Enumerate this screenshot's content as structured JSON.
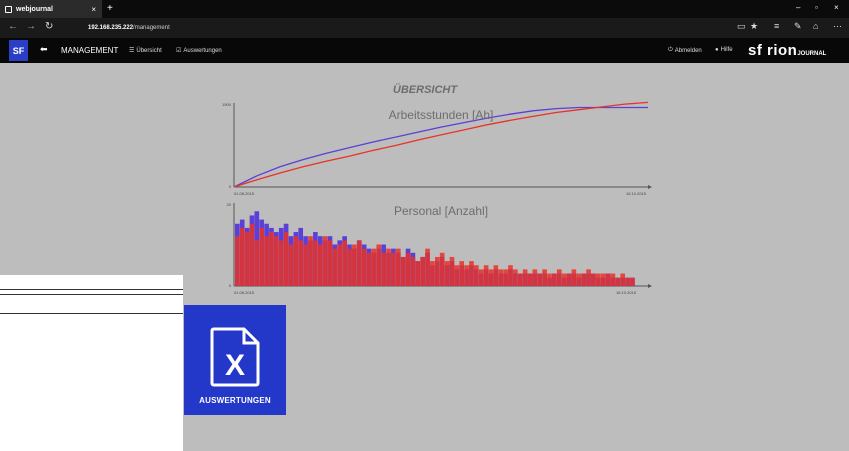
{
  "browser": {
    "tab_title": "webjournal",
    "tab_close": "×",
    "new_tab": "+",
    "win_min": "–",
    "win_max": "▫",
    "win_close": "×",
    "url_host": "192.168.235.222",
    "url_path": "/management"
  },
  "app": {
    "logo_text": "SF",
    "back_arrow": "⬅",
    "title": "MANAGEMENT",
    "nav_overview": "Übersicht",
    "nav_reports": "Auswertungen",
    "logout": "Abmelden",
    "help": "Hilfe",
    "brand": "sf rion",
    "brand_suffix": "JOURNAL"
  },
  "page_title": "ÜBERSICHT",
  "tile": {
    "label": "AUSWERTUNGEN",
    "icon": "excel-document-icon"
  },
  "colors": {
    "series_a": "#5b3fd6",
    "series_b": "#e83226",
    "tile": "#2337c8"
  },
  "chart_data": [
    {
      "type": "line",
      "title": "Arbeitsstunden [Ah]",
      "ylim": [
        0,
        1500
      ],
      "yticks": [
        0,
        1500
      ],
      "x_start_label": "01.08.2015",
      "x_end_label": "16.10.2015",
      "series": [
        {
          "values": [
            0,
            200,
            360,
            490,
            600,
            700,
            800,
            890,
            980,
            1070,
            1150,
            1230,
            1300,
            1360,
            1400,
            1420,
            1420,
            1420,
            1420
          ]
        },
        {
          "values": [
            0,
            130,
            250,
            360,
            460,
            550,
            650,
            740,
            840,
            930,
            1020,
            1110,
            1190,
            1260,
            1330,
            1380,
            1430,
            1480,
            1510
          ]
        }
      ]
    },
    {
      "type": "bar",
      "title": "Personal [Anzahl]",
      "ylim": [
        0,
        20
      ],
      "yticks": [
        0,
        20
      ],
      "x_start_label": "01.08.2015",
      "x_end_label": "16.10.2015",
      "series": [
        {
          "values": [
            15,
            16,
            14,
            17,
            18,
            16,
            15,
            14,
            13,
            14,
            15,
            12,
            13,
            14,
            12,
            11,
            13,
            12,
            11,
            12,
            10,
            11,
            12,
            10,
            9,
            11,
            10,
            9,
            8,
            9,
            10,
            8,
            9,
            8,
            7,
            9,
            8,
            6,
            7,
            8,
            5,
            6,
            7,
            5,
            6,
            4,
            5,
            4,
            5,
            4,
            3,
            4,
            3,
            4,
            3,
            3,
            4,
            3,
            3,
            3,
            3,
            3,
            3,
            3,
            2,
            3,
            3,
            2,
            3,
            3,
            2,
            3,
            3,
            3,
            2,
            2,
            3,
            2,
            2,
            2,
            2,
            2
          ]
        },
        {
          "values": [
            12,
            14,
            13,
            15,
            11,
            14,
            12,
            13,
            12,
            11,
            13,
            10,
            12,
            11,
            10,
            12,
            11,
            10,
            12,
            11,
            9,
            10,
            11,
            9,
            10,
            11,
            9,
            8,
            9,
            10,
            8,
            9,
            8,
            9,
            7,
            8,
            7,
            6,
            7,
            9,
            6,
            7,
            8,
            6,
            7,
            5,
            6,
            5,
            6,
            5,
            4,
            5,
            4,
            5,
            4,
            4,
            5,
            4,
            3,
            4,
            3,
            4,
            3,
            4,
            3,
            3,
            4,
            3,
            3,
            4,
            3,
            3,
            4,
            3,
            3,
            3,
            3,
            3,
            2,
            3,
            2,
            2
          ]
        }
      ]
    }
  ]
}
